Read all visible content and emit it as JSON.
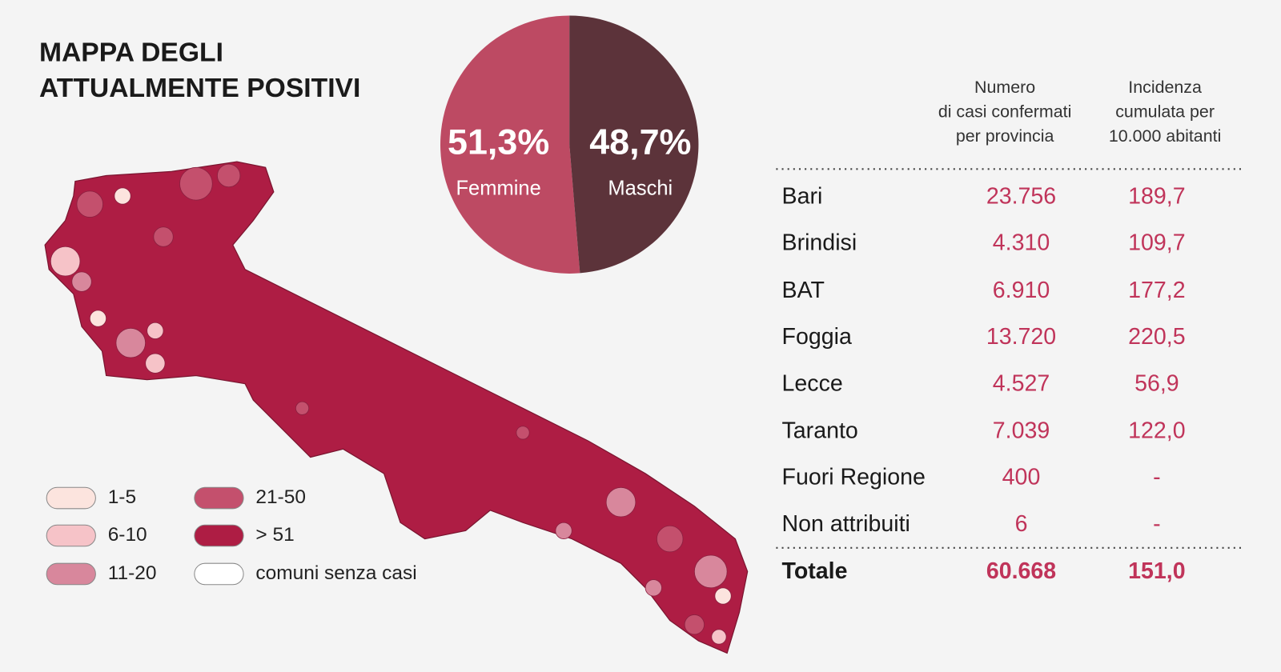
{
  "title": [
    "MAPPA DEGLI",
    "ATTUALMENTE POSITIVI"
  ],
  "chart_data": {
    "type": "pie",
    "categories": [
      "Femmine",
      "Maschi"
    ],
    "values": [
      51.3,
      48.7
    ],
    "value_labels": [
      "51,3%",
      "48,7%"
    ],
    "colors": [
      "#bd4a63",
      "#5c333a"
    ]
  },
  "map_legend": [
    {
      "label": "1-5",
      "color": "#fce4de"
    },
    {
      "label": "6-10",
      "color": "#f6c3c8"
    },
    {
      "label": "11-20",
      "color": "#d8879c"
    },
    {
      "label": "21-50",
      "color": "#c4506d"
    },
    {
      "label": "> 51",
      "color": "#ae1d44"
    },
    {
      "label": "comuni senza casi",
      "color": "#ffffff"
    }
  ],
  "table": {
    "header": [
      [
        "Numero",
        "di casi confermati",
        "per provincia"
      ],
      [
        "Incidenza",
        "cumulata per",
        "10.000 abitanti"
      ]
    ],
    "rows": [
      [
        "Bari",
        "23.756",
        "189,7"
      ],
      [
        "Brindisi",
        "4.310",
        "109,7"
      ],
      [
        "BAT",
        "6.910",
        "177,2"
      ],
      [
        "Foggia",
        "13.720",
        "220,5"
      ],
      [
        "Lecce",
        "4.527",
        "56,9"
      ],
      [
        "Taranto",
        "7.039",
        "122,0"
      ],
      [
        "Fuori Regione",
        "400",
        "-"
      ],
      [
        "Non attribuiti",
        "6",
        "-"
      ]
    ],
    "total": [
      "Totale",
      "60.668",
      "151,0"
    ]
  }
}
